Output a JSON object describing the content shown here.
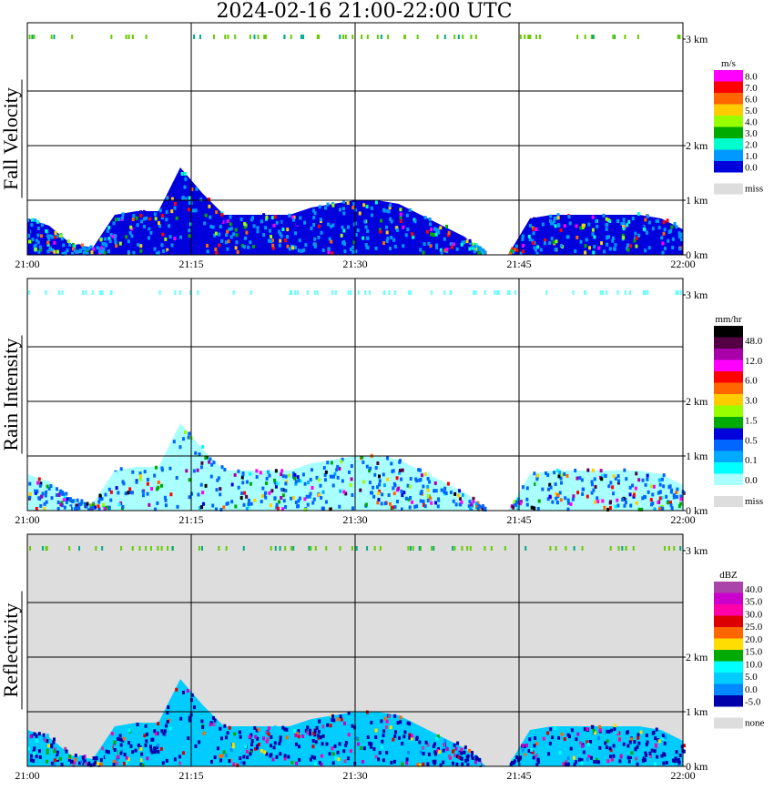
{
  "title": "2024-02-16  21:00-22:00 UTC",
  "x_ticks": [
    "21:00",
    "21:15",
    "21:30",
    "21:45",
    "22:00"
  ],
  "y_ticks": [
    "0 km",
    "1 km",
    "2 km",
    "3 km"
  ],
  "colors": {
    "grid": "#000000",
    "missing": "#dddddd"
  },
  "chart_data": [
    {
      "type": "heatmap",
      "ylabel": "Fall Velocity",
      "units": "m/s",
      "background": "#ffffff",
      "legend": {
        "labels": [
          "8.0",
          "7.0",
          "6.0",
          "5.0",
          "4.0",
          "3.0",
          "2.0",
          "1.0",
          "0.0"
        ],
        "colors": [
          "#ff00ff",
          "#ff0000",
          "#ff6600",
          "#ffcc00",
          "#99ff00",
          "#00aa00",
          "#00ffcc",
          "#0099ff",
          "#0000dd"
        ],
        "missing_label": "miss"
      },
      "profile": {
        "x_minutes": [
          0,
          2,
          4,
          6,
          8,
          10,
          12,
          14,
          16,
          18,
          20,
          22,
          24,
          26,
          28,
          30,
          32,
          34,
          36,
          38,
          40,
          42,
          44,
          46,
          48,
          50,
          52,
          54,
          56,
          58,
          60
        ],
        "top_km": [
          0.5,
          0.4,
          0.15,
          0.1,
          0.55,
          0.6,
          0.6,
          1.2,
          0.85,
          0.55,
          0.55,
          0.55,
          0.55,
          0.65,
          0.7,
          0.75,
          0.75,
          0.7,
          0.55,
          0.4,
          0.25,
          0,
          0,
          0.5,
          0.55,
          0.55,
          0.55,
          0.55,
          0.55,
          0.5,
          0.35
        ],
        "dominant": "#0000dd",
        "secondary": "#0099ff"
      }
    },
    {
      "type": "heatmap",
      "ylabel": "Rain Intensity",
      "units": "mm/hr",
      "background": "#ffffff",
      "legend": {
        "labels": [
          "48.0",
          "12.0",
          "6.0",
          "3.0",
          "1.5",
          "0.5",
          "0.1",
          "0.0"
        ],
        "colors": [
          "#000000",
          "#550044",
          "#aa00aa",
          "#ff00ff",
          "#ff0000",
          "#ff6600",
          "#ffcc00",
          "#99ff00",
          "#00aa00",
          "#0000dd",
          "#0066ff",
          "#00aaff",
          "#00ffff",
          "#aaffff"
        ],
        "missing_label": "miss"
      },
      "profile": {
        "x_minutes": [
          0,
          2,
          4,
          6,
          8,
          10,
          12,
          14,
          16,
          18,
          20,
          22,
          24,
          26,
          28,
          30,
          32,
          34,
          36,
          38,
          40,
          42,
          44,
          46,
          48,
          50,
          52,
          54,
          56,
          58,
          60
        ],
        "top_km": [
          0.5,
          0.4,
          0.15,
          0.1,
          0.55,
          0.6,
          0.6,
          1.2,
          0.85,
          0.55,
          0.55,
          0.55,
          0.55,
          0.65,
          0.7,
          0.75,
          0.75,
          0.7,
          0.55,
          0.4,
          0.25,
          0,
          0,
          0.5,
          0.55,
          0.55,
          0.55,
          0.55,
          0.55,
          0.5,
          0.35
        ],
        "dominant": "#aaffff",
        "secondary": "#0066ff"
      }
    },
    {
      "type": "heatmap",
      "ylabel": "Reflectivity",
      "units": "dBZ",
      "background": "#dddddd",
      "legend": {
        "labels": [
          "40.0",
          "35.0",
          "30.0",
          "25.0",
          "20.0",
          "15.0",
          "10.0",
          "5.0",
          "0.0",
          "-5.0"
        ],
        "colors": [
          "#aa44aa",
          "#cc00cc",
          "#ff00aa",
          "#dd0000",
          "#ff6600",
          "#ffdd00",
          "#00aa00",
          "#00ffff",
          "#00ccff",
          "#0088ff",
          "#0000aa"
        ],
        "missing_label": "none"
      },
      "profile": {
        "x_minutes": [
          0,
          2,
          4,
          6,
          8,
          10,
          12,
          14,
          16,
          18,
          20,
          22,
          24,
          26,
          28,
          30,
          32,
          34,
          36,
          38,
          40,
          42,
          44,
          46,
          48,
          50,
          52,
          54,
          56,
          58,
          60
        ],
        "top_km": [
          0.5,
          0.4,
          0.15,
          0.1,
          0.55,
          0.6,
          0.6,
          1.2,
          0.85,
          0.55,
          0.55,
          0.55,
          0.55,
          0.65,
          0.7,
          0.75,
          0.75,
          0.7,
          0.55,
          0.4,
          0.25,
          0,
          0,
          0.5,
          0.55,
          0.55,
          0.55,
          0.55,
          0.55,
          0.5,
          0.35
        ],
        "dominant": "#00ccff",
        "secondary": "#0000aa"
      }
    }
  ]
}
